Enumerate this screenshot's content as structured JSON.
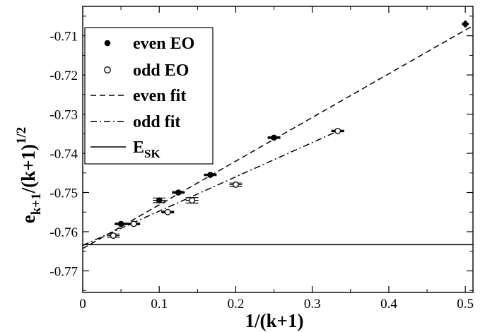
{
  "chart_data": {
    "type": "scatter",
    "xlabel": "1/(k+1)",
    "ylabel": {
      "base": "e",
      "sub": "k+1",
      "mid": "/(k+1)",
      "sup": "1/2"
    },
    "xlim": [
      0,
      0.51
    ],
    "ylim": [
      -0.7755,
      -0.7025
    ],
    "xticks": [
      0,
      0.1,
      0.2,
      0.3,
      0.4,
      0.5
    ],
    "xtick_labels": [
      "0",
      "0.1",
      "0.2",
      "0.3",
      "0.4",
      "0.5"
    ],
    "yticks": [
      -0.71,
      -0.72,
      -0.73,
      -0.74,
      -0.75,
      -0.76,
      -0.77
    ],
    "ytick_labels": [
      "-0.71",
      "-0.72",
      "-0.73",
      "-0.74",
      "-0.75",
      "-0.76",
      "-0.77"
    ],
    "grid": false,
    "legend_position": "top-left",
    "series": [
      {
        "name": "even EO",
        "marker": "filled-circle",
        "points": [
          {
            "x": 0.05,
            "y": -0.758,
            "err": 0.0002
          },
          {
            "x": 0.1,
            "y": -0.752,
            "err": 0.0006
          },
          {
            "x": 0.125,
            "y": -0.75,
            "err": 0.0003
          },
          {
            "x": 0.1667,
            "y": -0.7455,
            "err": 0.0002
          },
          {
            "x": 0.25,
            "y": -0.736,
            "err": 0.0002
          }
        ]
      },
      {
        "name": "odd EO",
        "marker": "open-circle",
        "points": [
          {
            "x": 0.04,
            "y": -0.761,
            "err": 0.0004
          },
          {
            "x": 0.0667,
            "y": -0.758,
            "err": 0.0002
          },
          {
            "x": 0.1111,
            "y": -0.755,
            "err": 0.0002
          },
          {
            "x": 0.1429,
            "y": -0.752,
            "err": 0.0007
          },
          {
            "x": 0.2,
            "y": -0.748,
            "err": 0.0004
          },
          {
            "x": 0.3333,
            "y": -0.7343,
            "err": 0.0002
          }
        ]
      },
      {
        "name": "even fit",
        "style": "dashed",
        "line": {
          "intercept": -0.7643,
          "slope": 0.1115,
          "x_range": [
            0,
            0.51
          ]
        }
      },
      {
        "name": "odd fit",
        "style": "dash-dot",
        "line": {
          "intercept": -0.7635,
          "slope": 0.0875,
          "x_range": [
            0,
            0.3333
          ]
        }
      },
      {
        "name": "E",
        "name_sub": "SK",
        "style": "solid",
        "hline": -0.7633
      }
    ],
    "extra_points": [
      {
        "x": 0.5,
        "y": -0.707,
        "marker": "filled-diamond"
      }
    ]
  }
}
